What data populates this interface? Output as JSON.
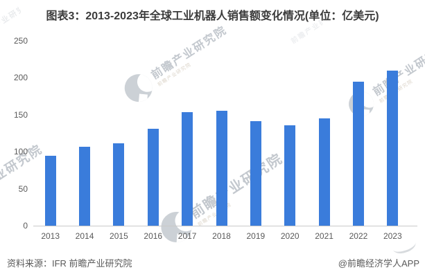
{
  "page": {
    "title": "图表3：2013-2023年全球工业机器人销售额变化情况(单位：亿美元)"
  },
  "footer": {
    "source": "资料来源：IFR 前瞻产业研究院",
    "credit": "@前瞻经济学人APP"
  },
  "watermark": {
    "brand": "前瞻产业研究院",
    "sub": "前瞻产业研究院"
  },
  "colors": {
    "bar": "#3A7CDB",
    "title_text": "#3b3b3b",
    "axis_label": "#595959",
    "axis_line": "#c9c9c9",
    "watermark": "#c3c8ce",
    "background": "#ffffff"
  },
  "chart_data": {
    "type": "bar",
    "title": "2013-2023年全球工业机器人销售额变化情况",
    "unit": "亿美元",
    "categories": [
      "2013",
      "2014",
      "2015",
      "2016",
      "2017",
      "2018",
      "2019",
      "2020",
      "2021",
      "2022",
      "2023"
    ],
    "values": [
      95,
      107,
      111,
      131,
      154,
      155,
      141,
      136,
      145,
      195,
      210
    ],
    "xlabel": "",
    "ylabel": "",
    "ylim": [
      0,
      250
    ],
    "yticks": [
      0,
      50,
      100,
      150,
      200,
      250
    ],
    "grid": false,
    "legend": null,
    "bar_color": "#3A7CDB"
  }
}
